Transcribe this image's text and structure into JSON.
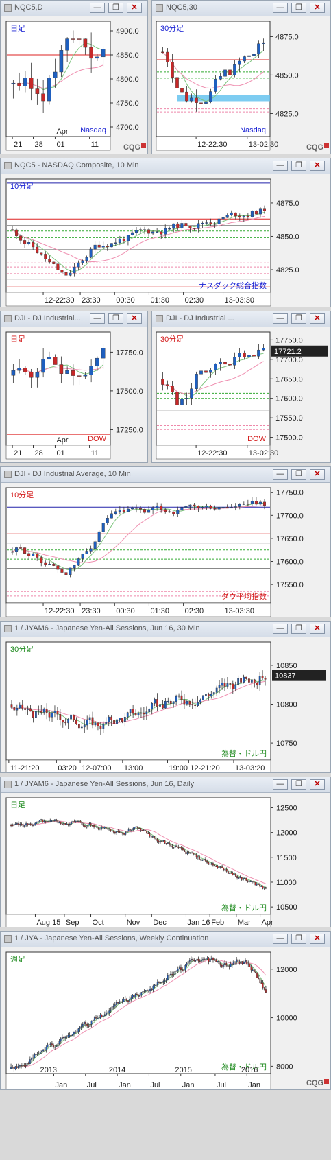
{
  "windows": [
    {
      "title": "NQC5,D",
      "label": "日足",
      "label_color": "#1b23d4",
      "watermark": "Nasdaq",
      "watermark_color": "#1b23d4",
      "y_ticks": [
        "4900.0",
        "4850.0",
        "4800.0",
        "4750.0",
        "4700.0"
      ],
      "x_ticks": [
        "21",
        "28",
        "01",
        "11"
      ],
      "x_upper": "Apr",
      "logo": "CQG"
    },
    {
      "title": "NQC5,30",
      "label": "30分足",
      "label_color": "#1b23d4",
      "watermark": "Nasdaq",
      "watermark_color": "#1b23d4",
      "y_ticks": [
        "4875.0",
        "4850.0",
        "4825.0"
      ],
      "x_ticks": [
        "12-22:30",
        "13-02:30"
      ],
      "logo": "CQG"
    },
    {
      "title": "NQC5 - NASDAQ Composite, 10 Min",
      "label": "10分足",
      "label_color": "#1b23d4",
      "watermark": "ナスダック総合指数",
      "watermark_color": "#1b23d4",
      "y_ticks": [
        "4875.0",
        "4850.0",
        "4825.0"
      ],
      "x_ticks": [
        "12-22:30",
        "23:30",
        "00:30",
        "01:30",
        "02:30",
        "13-03:30"
      ]
    },
    {
      "title": "DJI - DJ Industrial...",
      "label": "日足",
      "label_color": "#d41b1b",
      "watermark": "DOW",
      "watermark_color": "#d41b1b",
      "y_ticks": [
        "17750.0",
        "17500.0",
        "17250.0"
      ],
      "x_ticks": [
        "21",
        "28",
        "01",
        "11"
      ],
      "x_upper": "Apr"
    },
    {
      "title": "DJI - DJ Industrial ...",
      "label": "30分足",
      "label_color": "#d41b1b",
      "watermark": "DOW",
      "watermark_color": "#d41b1b",
      "y_ticks": [
        "17750.0",
        "17700.0",
        "17650.0",
        "17600.0",
        "17550.0",
        "17500.0"
      ],
      "price_label": "17721.2",
      "x_ticks": [
        "12-22:30",
        "13-02:30"
      ]
    },
    {
      "title": "DJI - DJ Industrial Average, 10 Min",
      "label": "10分足",
      "label_color": "#d41b1b",
      "watermark": "ダウ平均指数",
      "watermark_color": "#d41b1b",
      "y_ticks": [
        "17750.0",
        "17700.0",
        "17650.0",
        "17600.0",
        "17550.0"
      ],
      "x_ticks": [
        "12-22:30",
        "23:30",
        "00:30",
        "01:30",
        "02:30",
        "13-03:30"
      ]
    },
    {
      "title": "1 / JYAM6 - Japanese Yen-All Sessions, Jun 16, 30 Min",
      "label": "30分足",
      "label_color": "#1e8a1e",
      "watermark": "為替・ドル円",
      "watermark_color": "#1e8a1e",
      "y_ticks": [
        "10850",
        "10800",
        "10750"
      ],
      "price_label": "10837",
      "x_ticks": [
        "11-21:20",
        "03:20",
        "12-07:00",
        "13:00",
        "19:00",
        "12-21:20",
        "13-03:20"
      ]
    },
    {
      "title": "1 / JYAM6 - Japanese Yen-All Sessions, Jun 16, Daily",
      "label": "日足",
      "label_color": "#1e8a1e",
      "watermark": "為替・ドル円",
      "watermark_color": "#1e8a1e",
      "y_ticks": [
        "12500",
        "12000",
        "11500",
        "11000",
        "10500"
      ],
      "x_ticks": [
        "Aug 15",
        "Sep",
        "Oct",
        "Nov",
        "Dec",
        "Jan 16",
        "Feb",
        "Mar",
        "Apr"
      ]
    },
    {
      "title": "1 / JYA - Japanese Yen-All Sessions, Weekly Continuation",
      "label": "週足",
      "label_color": "#1e8a1e",
      "watermark": "為替・ドル円",
      "watermark_color": "#1e8a1e",
      "y_ticks": [
        "12000",
        "10000",
        "8000"
      ],
      "x_years": [
        "2013",
        "2014",
        "2015",
        "2016"
      ],
      "x_ticks": [
        "Jan",
        "Jul",
        "Jan",
        "Jul",
        "Jan",
        "Jul",
        "Jan"
      ],
      "logo": "CQG"
    }
  ],
  "buttons": {
    "minimize": "—",
    "restore": "❐",
    "close": "✕"
  },
  "colors": {
    "up": "#1f5fbf",
    "down": "#c62828",
    "ma_short": "#7cc47c",
    "ma_long": "#ef8fb0",
    "ma_red": "#d22",
    "plot_bg": "#ffffff"
  },
  "chart_data": [
    {
      "type": "candlestick",
      "window": 0,
      "ylim": [
        4680,
        4920
      ],
      "title": "",
      "xlabel": "",
      "ylabel": ""
    },
    {
      "type": "candlestick",
      "window": 1,
      "ylim": [
        4810,
        4885
      ],
      "title": "",
      "xlabel": "",
      "ylabel": ""
    },
    {
      "type": "candlestick",
      "window": 2,
      "ylim": [
        4808,
        4893
      ],
      "title": "",
      "xlabel": "",
      "ylabel": ""
    },
    {
      "type": "candlestick",
      "window": 3,
      "ylim": [
        17150,
        17880
      ],
      "title": "",
      "xlabel": "",
      "ylabel": ""
    },
    {
      "type": "candlestick",
      "window": 4,
      "ylim": [
        17480,
        17770
      ],
      "title": "",
      "xlabel": "",
      "ylabel": ""
    },
    {
      "type": "candlestick",
      "window": 5,
      "ylim": [
        17510,
        17760
      ],
      "title": "",
      "xlabel": "",
      "ylabel": ""
    },
    {
      "type": "candlestick",
      "window": 6,
      "ylim": [
        10728,
        10880
      ],
      "title": "",
      "xlabel": "",
      "ylabel": ""
    },
    {
      "type": "candlestick",
      "window": 7,
      "ylim": [
        10350,
        12700
      ],
      "title": "",
      "xlabel": "",
      "ylabel": ""
    },
    {
      "type": "candlestick",
      "window": 8,
      "ylim": [
        7700,
        12700
      ],
      "title": "",
      "xlabel": "",
      "ylabel": ""
    }
  ]
}
